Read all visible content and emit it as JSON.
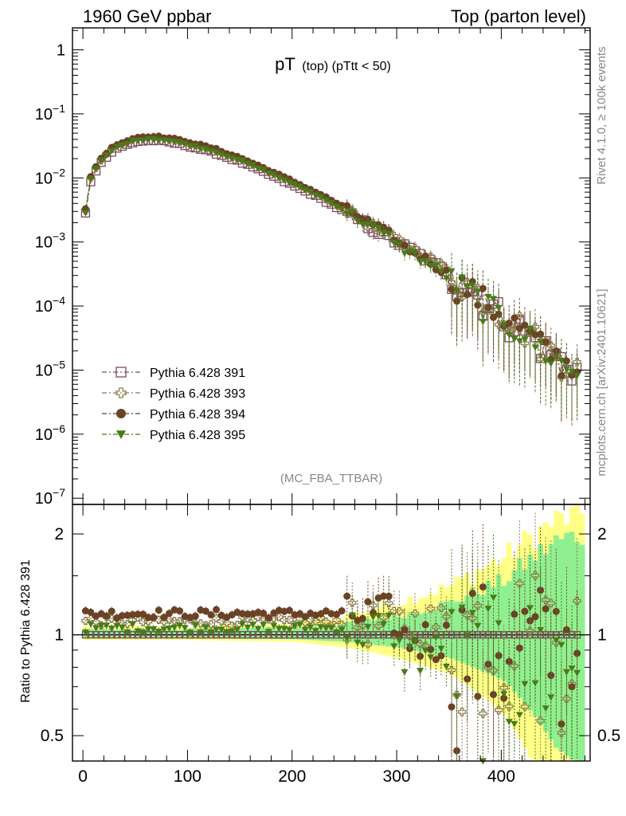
{
  "header": {
    "left": "1960 GeV ppbar",
    "right": "Top (parton level)"
  },
  "side_labels": {
    "rivet": "Rivet 4.1.0, ≥ 100k events",
    "mcplots": "mcplots.cern.ch [arXiv:2401.10621]"
  },
  "chart_data": {
    "type": "scatter",
    "title_main": "pT",
    "title_sub": "(top) (pTtt < 50)",
    "analysis_tag": "(MC_FBA_TTBAR)",
    "xlim": [
      -10,
      485
    ],
    "x_ticks": [
      0,
      100,
      200,
      300,
      400
    ],
    "x_tick_labels": [
      "0",
      "100",
      "200",
      "300",
      "400"
    ],
    "main_panel": {
      "yscale": "log",
      "ylim": [
        8e-08,
        2.2
      ],
      "y_ticks": [
        {
          "value": 1,
          "base": "1",
          "exp": ""
        },
        {
          "value": 0.1,
          "base": "10",
          "exp": "−1"
        },
        {
          "value": 0.01,
          "base": "10",
          "exp": "−2"
        },
        {
          "value": 0.001,
          "base": "10",
          "exp": "−3"
        },
        {
          "value": 0.0001,
          "base": "10",
          "exp": "−4"
        },
        {
          "value": 1e-05,
          "base": "10",
          "exp": "−5"
        },
        {
          "value": 1e-06,
          "base": "10",
          "exp": "−6"
        },
        {
          "value": 1e-07,
          "base": "10",
          "exp": "−7"
        }
      ]
    },
    "ratio_panel": {
      "ylabel": "Ratio to Pythia 6.428 391",
      "yscale": "log",
      "ylim": [
        0.42,
        2.45
      ],
      "y_ticks": [
        {
          "value": 2,
          "label": "2"
        },
        {
          "value": 1,
          "label": "1"
        },
        {
          "value": 0.5,
          "label": "0.5"
        }
      ],
      "reference": 1.0
    },
    "legend_position": "bottom-left",
    "series": [
      {
        "name": "Pythia 6.428 391",
        "marker": "open-square",
        "color": "#7b4a5a",
        "ratio_offset": 1.0
      },
      {
        "name": "Pythia 6.428 393",
        "marker": "open-cross",
        "color": "#8a7a4a",
        "ratio_offset": 1.1
      },
      {
        "name": "Pythia 6.428 394",
        "marker": "filled-circle",
        "color": "#6b4226",
        "ratio_offset": 1.16
      },
      {
        "name": "Pythia 6.428 395",
        "marker": "filled-triangle-down",
        "color": "#4a7a1a",
        "ratio_offset": 1.05
      }
    ],
    "shape_points": [
      {
        "x": 2.5,
        "y": 0.0028
      },
      {
        "x": 7.5,
        "y": 0.009
      },
      {
        "x": 15,
        "y": 0.016
      },
      {
        "x": 30,
        "y": 0.028
      },
      {
        "x": 50,
        "y": 0.037
      },
      {
        "x": 65,
        "y": 0.039
      },
      {
        "x": 80,
        "y": 0.037
      },
      {
        "x": 100,
        "y": 0.032
      },
      {
        "x": 125,
        "y": 0.025
      },
      {
        "x": 150,
        "y": 0.018
      },
      {
        "x": 175,
        "y": 0.012
      },
      {
        "x": 200,
        "y": 0.0078
      },
      {
        "x": 225,
        "y": 0.005
      },
      {
        "x": 250,
        "y": 0.003
      },
      {
        "x": 275,
        "y": 0.0017
      },
      {
        "x": 300,
        "y": 0.001
      },
      {
        "x": 325,
        "y": 0.0006
      },
      {
        "x": 350,
        "y": 0.00032
      },
      {
        "x": 375,
        "y": 0.00017
      },
      {
        "x": 400,
        "y": 8e-05
      },
      {
        "x": 425,
        "y": 4e-05
      },
      {
        "x": 450,
        "y": 1.8e-05
      },
      {
        "x": 475,
        "y": 1e-05
      }
    ],
    "bin_width": 5,
    "x_max": 475,
    "uncertainty_bands": [
      {
        "name": "yellow",
        "color": "#ffff88",
        "x": [
          0,
          100,
          200,
          250,
          300,
          350,
          400,
          450,
          475
        ],
        "half_width": [
          0.06,
          0.06,
          0.08,
          0.14,
          0.25,
          0.4,
          0.7,
          1.2,
          1.3
        ]
      },
      {
        "name": "green",
        "color": "#90f090",
        "x": [
          0,
          100,
          200,
          250,
          300,
          350,
          400,
          450,
          475
        ],
        "half_width": [
          0.04,
          0.04,
          0.05,
          0.08,
          0.14,
          0.25,
          0.45,
          0.9,
          1.0
        ]
      }
    ]
  }
}
